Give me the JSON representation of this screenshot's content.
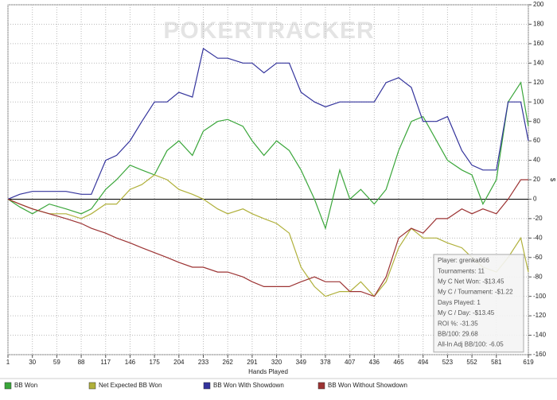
{
  "chart_data": {
    "type": "line",
    "watermark": "POKERTRACKER",
    "x_label": "Hands Played",
    "y_label": "$",
    "x": [
      1,
      15,
      30,
      50,
      70,
      88,
      100,
      117,
      130,
      146,
      160,
      175,
      190,
      204,
      220,
      233,
      250,
      262,
      280,
      291,
      305,
      320,
      335,
      349,
      365,
      378,
      395,
      407,
      420,
      436,
      450,
      465,
      480,
      494,
      510,
      523,
      540,
      552,
      565,
      581,
      595,
      610,
      619
    ],
    "series": [
      {
        "name": "BB Won",
        "color": "#3aa63a",
        "values": [
          0,
          -8,
          -15,
          -5,
          -10,
          -15,
          -10,
          10,
          20,
          35,
          30,
          25,
          50,
          60,
          45,
          70,
          80,
          82,
          75,
          60,
          45,
          60,
          50,
          30,
          0,
          -30,
          30,
          0,
          10,
          -5,
          10,
          50,
          80,
          85,
          60,
          40,
          30,
          25,
          -5,
          20,
          100,
          120,
          75
        ]
      },
      {
        "name": "Net Expected BB Won",
        "color": "#b0b03a",
        "values": [
          0,
          -5,
          -10,
          -15,
          -15,
          -20,
          -15,
          -5,
          -5,
          10,
          15,
          25,
          20,
          10,
          5,
          0,
          -10,
          -15,
          -10,
          -15,
          -20,
          -25,
          -35,
          -70,
          -90,
          -100,
          -95,
          -95,
          -85,
          -100,
          -85,
          -50,
          -30,
          -40,
          -40,
          -45,
          -50,
          -60,
          -70,
          -75,
          -60,
          -40,
          -75
        ]
      },
      {
        "name": "BB Won With Showdown",
        "color": "#33339c",
        "values": [
          0,
          5,
          8,
          8,
          8,
          5,
          5,
          40,
          45,
          60,
          80,
          100,
          100,
          110,
          105,
          155,
          145,
          145,
          140,
          140,
          130,
          140,
          140,
          110,
          100,
          95,
          100,
          100,
          100,
          100,
          120,
          125,
          115,
          80,
          80,
          85,
          50,
          35,
          30,
          30,
          100,
          100,
          60
        ]
      },
      {
        "name": "BB Won Without Showdown",
        "color": "#9c3333",
        "values": [
          0,
          -5,
          -10,
          -15,
          -20,
          -25,
          -30,
          -35,
          -40,
          -45,
          -50,
          -55,
          -60,
          -65,
          -70,
          -70,
          -75,
          -75,
          -80,
          -85,
          -90,
          -90,
          -90,
          -85,
          -80,
          -85,
          -85,
          -95,
          -95,
          -100,
          -80,
          -40,
          -30,
          -35,
          -20,
          -20,
          -10,
          -15,
          -10,
          -15,
          0,
          20,
          20
        ]
      }
    ],
    "xlim": [
      1,
      619
    ],
    "xticks": [
      1,
      30,
      59,
      88,
      117,
      146,
      175,
      204,
      233,
      262,
      291,
      320,
      349,
      378,
      407,
      436,
      465,
      494,
      523,
      552,
      581,
      619
    ],
    "ylim": [
      -160,
      200
    ],
    "yticks": [
      -160,
      -140,
      -120,
      -100,
      -80,
      -60,
      -40,
      -20,
      0,
      20,
      40,
      60,
      80,
      100,
      120,
      140,
      160,
      180,
      200
    ],
    "grid": true,
    "stats": [
      "Player: grenka666",
      "Tournaments: 11",
      "My C Net Won: -$13.45",
      "My C / Tournament: -$1.22",
      "Days Played: 1",
      "My C / Day: -$13.45",
      "ROI %: -31.35",
      "BB/100: 29.68",
      "All-In Adj BB/100: -6.05"
    ]
  }
}
